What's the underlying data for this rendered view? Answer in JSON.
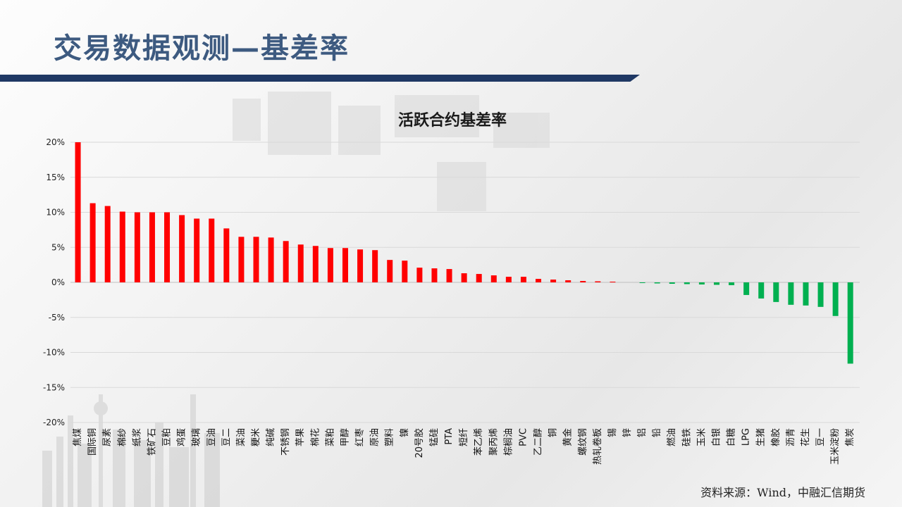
{
  "slide": {
    "title": "交易数据观测—基差率",
    "source": "资料来源：Wind，中融汇信期货"
  },
  "colors": {
    "positive": "#ff0000",
    "negative": "#00b050",
    "title": "#3d5a80",
    "title_bar": "#1f3864"
  },
  "chart_data": {
    "type": "bar",
    "title": "活跃合约基差率",
    "ylim": [
      -20,
      20
    ],
    "yticks": [
      20,
      15,
      10,
      5,
      0,
      -5,
      -10,
      -15,
      -20
    ],
    "ytick_labels": [
      "20%",
      "15%",
      "10%",
      "5%",
      "0%",
      "-5%",
      "-10%",
      "-15%",
      "-20%"
    ],
    "grid": true,
    "categories": [
      "焦煤",
      "国际铜",
      "尿素",
      "棉纱",
      "纸浆",
      "铁矿石",
      "豆粕",
      "鸡蛋",
      "玻璃",
      "豆油",
      "豆二",
      "菜油",
      "粳米",
      "纯碱",
      "不锈钢",
      "苹果",
      "棉花",
      "菜粕",
      "甲醇",
      "红枣",
      "原油",
      "塑料",
      "镍",
      "20号胶",
      "锰硅",
      "PTA",
      "短纤",
      "苯乙烯",
      "聚丙烯",
      "棕榈油",
      "PVC",
      "乙二醇",
      "铜",
      "黄金",
      "螺纹钢",
      "热轧卷板",
      "锡",
      "锌",
      "铝",
      "铅",
      "燃油",
      "硅铁",
      "玉米",
      "白银",
      "白糖",
      "LPG",
      "生猪",
      "橡胶",
      "沥青",
      "花生",
      "豆一",
      "玉米淀粉",
      "焦炭"
    ],
    "values": [
      20.0,
      11.3,
      10.9,
      10.1,
      10.0,
      10.0,
      10.0,
      9.6,
      9.1,
      9.1,
      7.7,
      6.5,
      6.5,
      6.4,
      5.9,
      5.4,
      5.2,
      4.9,
      4.9,
      4.7,
      4.6,
      3.2,
      3.1,
      2.1,
      2.0,
      1.9,
      1.3,
      1.2,
      1.0,
      0.8,
      0.8,
      0.5,
      0.4,
      0.3,
      0.2,
      0.15,
      0.1,
      0.0,
      -0.1,
      -0.15,
      -0.2,
      -0.25,
      -0.3,
      -0.35,
      -0.4,
      -1.8,
      -2.3,
      -2.8,
      -3.2,
      -3.3,
      -3.5,
      -4.8,
      -11.6
    ]
  }
}
